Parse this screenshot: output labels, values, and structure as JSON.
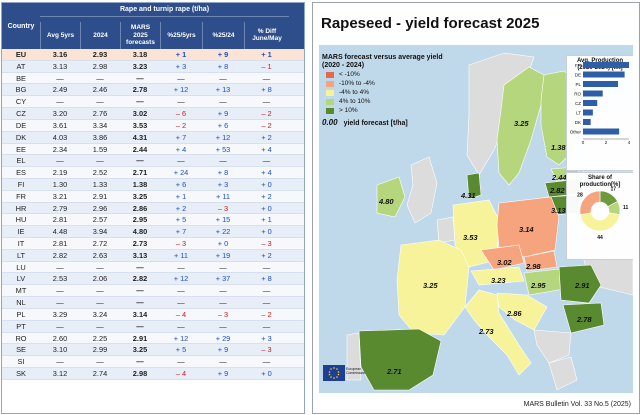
{
  "table": {
    "header_top": "Rape and turnip rape (t/ha)",
    "col_country": "Country",
    "cols": [
      "Avg 5yrs",
      "2024",
      "MARS\n2025\nforecasts",
      "%25/5yrs",
      "%25/24",
      "% Diff\nJune/May"
    ],
    "rows": [
      {
        "country": "EU",
        "avg": "3.16",
        "y2024": "2.93",
        "fc": "3.18",
        "d5": "+ 1",
        "d24": "+ 9",
        "dm": "+ 1"
      },
      {
        "country": "AT",
        "avg": "3.13",
        "y2024": "2.98",
        "fc": "3.23",
        "d5": "+ 3",
        "d24": "+ 8",
        "dm": "– 1"
      },
      {
        "country": "BE",
        "avg": "—",
        "y2024": "—",
        "fc": "—",
        "d5": "—",
        "d24": "—",
        "dm": "—"
      },
      {
        "country": "BG",
        "avg": "2.49",
        "y2024": "2.46",
        "fc": "2.78",
        "d5": "+ 12",
        "d24": "+ 13",
        "dm": "+ 8"
      },
      {
        "country": "CY",
        "avg": "—",
        "y2024": "—",
        "fc": "—",
        "d5": "—",
        "d24": "—",
        "dm": "—"
      },
      {
        "country": "CZ",
        "avg": "3.20",
        "y2024": "2.76",
        "fc": "3.02",
        "d5": "– 6",
        "d24": "+ 9",
        "dm": "– 2"
      },
      {
        "country": "DE",
        "avg": "3.61",
        "y2024": "3.34",
        "fc": "3.53",
        "d5": "– 2",
        "d24": "+ 6",
        "dm": "– 2"
      },
      {
        "country": "DK",
        "avg": "4.03",
        "y2024": "3.86",
        "fc": "4.31",
        "d5": "+ 7",
        "d24": "+ 12",
        "dm": "+ 2"
      },
      {
        "country": "EE",
        "avg": "2.34",
        "y2024": "1.59",
        "fc": "2.44",
        "d5": "+ 4",
        "d24": "+ 53",
        "dm": "+ 4"
      },
      {
        "country": "EL",
        "avg": "—",
        "y2024": "—",
        "fc": "—",
        "d5": "—",
        "d24": "—",
        "dm": "—"
      },
      {
        "country": "ES",
        "avg": "2.19",
        "y2024": "2.52",
        "fc": "2.71",
        "d5": "+ 24",
        "d24": "+ 8",
        "dm": "+ 4"
      },
      {
        "country": "FI",
        "avg": "1.30",
        "y2024": "1.33",
        "fc": "1.38",
        "d5": "+ 6",
        "d24": "+ 3",
        "dm": "+ 0"
      },
      {
        "country": "FR",
        "avg": "3.21",
        "y2024": "2.91",
        "fc": "3.25",
        "d5": "+ 1",
        "d24": "+ 11",
        "dm": "+ 2"
      },
      {
        "country": "HR",
        "avg": "2.79",
        "y2024": "2.96",
        "fc": "2.86",
        "d5": "+ 2",
        "d24": "– 3",
        "dm": "+ 0"
      },
      {
        "country": "HU",
        "avg": "2.81",
        "y2024": "2.57",
        "fc": "2.95",
        "d5": "+ 5",
        "d24": "+ 15",
        "dm": "+ 1"
      },
      {
        "country": "IE",
        "avg": "4.48",
        "y2024": "3.94",
        "fc": "4.80",
        "d5": "+ 7",
        "d24": "+ 22",
        "dm": "+ 0"
      },
      {
        "country": "IT",
        "avg": "2.81",
        "y2024": "2.72",
        "fc": "2.73",
        "d5": "– 3",
        "d24": "+ 0",
        "dm": "– 3"
      },
      {
        "country": "LT",
        "avg": "2.82",
        "y2024": "2.63",
        "fc": "3.13",
        "d5": "+ 11",
        "d24": "+ 19",
        "dm": "+ 2"
      },
      {
        "country": "LU",
        "avg": "—",
        "y2024": "—",
        "fc": "—",
        "d5": "—",
        "d24": "—",
        "dm": "—"
      },
      {
        "country": "LV",
        "avg": "2.53",
        "y2024": "2.06",
        "fc": "2.82",
        "d5": "+ 12",
        "d24": "+ 37",
        "dm": "+ 8"
      },
      {
        "country": "MT",
        "avg": "—",
        "y2024": "—",
        "fc": "—",
        "d5": "—",
        "d24": "—",
        "dm": "—"
      },
      {
        "country": "NL",
        "avg": "—",
        "y2024": "—",
        "fc": "—",
        "d5": "—",
        "d24": "—",
        "dm": "—"
      },
      {
        "country": "PL",
        "avg": "3.29",
        "y2024": "3.24",
        "fc": "3.14",
        "d5": "– 4",
        "d24": "– 3",
        "dm": "– 2"
      },
      {
        "country": "PT",
        "avg": "—",
        "y2024": "—",
        "fc": "—",
        "d5": "—",
        "d24": "—",
        "dm": "—"
      },
      {
        "country": "RO",
        "avg": "2.60",
        "y2024": "2.25",
        "fc": "2.91",
        "d5": "+ 12",
        "d24": "+ 29",
        "dm": "+ 3"
      },
      {
        "country": "SE",
        "avg": "3.10",
        "y2024": "2.99",
        "fc": "3.25",
        "d5": "+ 5",
        "d24": "+ 9",
        "dm": "– 3"
      },
      {
        "country": "SI",
        "avg": "—",
        "y2024": "—",
        "fc": "—",
        "d5": "—",
        "d24": "—",
        "dm": "—"
      },
      {
        "country": "SK",
        "avg": "3.12",
        "y2024": "2.74",
        "fc": "2.98",
        "d5": "– 4",
        "d24": "+ 9",
        "dm": "+ 0"
      }
    ]
  },
  "panel": {
    "title": "Rapeseed - yield forecast 2025",
    "footer": "MARS Bulletin Vol. 33 No.5 (2025)",
    "legend": {
      "title": "MARS forecast versus average yield\n(2020 - 2024)",
      "items": [
        {
          "label": "< -10%",
          "color": "#e8674a"
        },
        {
          "label": "-10% to -4%",
          "color": "#f5a47e"
        },
        {
          "label": "-4% to 4%",
          "color": "#f6f39a"
        },
        {
          "label": "4% to 10%",
          "color": "#b6d67d"
        },
        {
          "label": "> 10%",
          "color": "#5a8a2f"
        }
      ],
      "forecast_num": "0.00",
      "forecast_label": "yield forecast [t/ha]"
    },
    "map_labels": [
      {
        "name": "SE",
        "value": "3.25"
      },
      {
        "name": "FI",
        "value": "1.38"
      },
      {
        "name": "IE",
        "value": "4.80"
      },
      {
        "name": "DK",
        "value": "4.31"
      },
      {
        "name": "EE",
        "value": "2.44"
      },
      {
        "name": "LV",
        "value": "2.82"
      },
      {
        "name": "LT",
        "value": "3.13"
      },
      {
        "name": "PL",
        "value": "3.14"
      },
      {
        "name": "DE",
        "value": "3.53"
      },
      {
        "name": "CZ",
        "value": "3.02"
      },
      {
        "name": "SK",
        "value": "2.98"
      },
      {
        "name": "FR",
        "value": "3.25"
      },
      {
        "name": "AT",
        "value": "3.23"
      },
      {
        "name": "HU",
        "value": "2.95"
      },
      {
        "name": "RO",
        "value": "2.91"
      },
      {
        "name": "HR",
        "value": "2.86"
      },
      {
        "name": "IT",
        "value": "2.73"
      },
      {
        "name": "BG",
        "value": "2.78"
      },
      {
        "name": "ES",
        "value": "2.71"
      }
    ],
    "production": {
      "title": "Avg. Production\n(2020-2024) [Mt]",
      "bars": [
        {
          "label": "FR",
          "value": 4.2
        },
        {
          "label": "DE",
          "value": 3.8
        },
        {
          "label": "PL",
          "value": 3.2
        },
        {
          "label": "RO",
          "value": 1.8
        },
        {
          "label": "CZ",
          "value": 1.3
        },
        {
          "label": "LT",
          "value": 0.9
        },
        {
          "label": "DK",
          "value": 0.7
        },
        {
          "label": "Other",
          "value": 3.3
        }
      ],
      "axis_ticks": [
        "0",
        "2",
        "4"
      ],
      "bar_color": "#2f5ea8"
    },
    "share": {
      "title": "Share of production[%]",
      "slices": [
        {
          "value": 17,
          "color": "#6d9a3a"
        },
        {
          "value": 11,
          "color": "#b6d67d"
        },
        {
          "value": 44,
          "color": "#f6f39a"
        },
        {
          "value": 28,
          "color": "#f5a47e"
        }
      ],
      "labels": [
        "17",
        "11",
        "44",
        "28"
      ]
    },
    "eu_flag_label": "European Commission"
  }
}
